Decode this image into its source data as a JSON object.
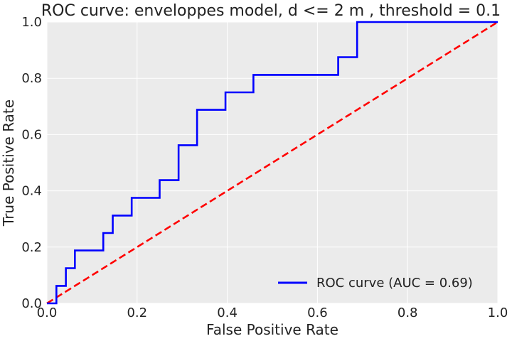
{
  "chart_data": {
    "type": "line",
    "title": "ROC curve: enveloppes model, d <= 2 m , threshold = 0.1",
    "xlabel": "False Positive Rate",
    "ylabel": "True Positive Rate",
    "xlim": [
      0.0,
      1.0
    ],
    "ylim": [
      0.0,
      1.0
    ],
    "xticks": [
      "0.0",
      "0.2",
      "0.4",
      "0.6",
      "0.8",
      "1.0"
    ],
    "yticks": [
      "0.0",
      "0.2",
      "0.4",
      "0.6",
      "0.8",
      "1.0"
    ],
    "grid": true,
    "legend_position": "lower-right",
    "series": [
      {
        "name": "ROC curve (AUC = 0.69)",
        "style": "solid",
        "color": "#0000ff",
        "points": [
          [
            0.0,
            0.0
          ],
          [
            0.021,
            0.0
          ],
          [
            0.021,
            0.062
          ],
          [
            0.042,
            0.062
          ],
          [
            0.042,
            0.125
          ],
          [
            0.062,
            0.125
          ],
          [
            0.062,
            0.188
          ],
          [
            0.125,
            0.188
          ],
          [
            0.125,
            0.25
          ],
          [
            0.146,
            0.25
          ],
          [
            0.146,
            0.312
          ],
          [
            0.188,
            0.312
          ],
          [
            0.188,
            0.375
          ],
          [
            0.25,
            0.375
          ],
          [
            0.25,
            0.438
          ],
          [
            0.292,
            0.438
          ],
          [
            0.292,
            0.562
          ],
          [
            0.333,
            0.562
          ],
          [
            0.333,
            0.688
          ],
          [
            0.396,
            0.688
          ],
          [
            0.396,
            0.75
          ],
          [
            0.458,
            0.75
          ],
          [
            0.458,
            0.812
          ],
          [
            0.646,
            0.812
          ],
          [
            0.646,
            0.875
          ],
          [
            0.688,
            0.875
          ],
          [
            0.688,
            1.0
          ],
          [
            1.0,
            1.0
          ]
        ]
      },
      {
        "style": "dashed",
        "color": "#ff0000",
        "points": [
          [
            0.0,
            0.0
          ],
          [
            1.0,
            1.0
          ]
        ]
      }
    ]
  },
  "colors": {
    "background": "#ebebeb",
    "grid": "#ffffff",
    "roc": "#0000ff",
    "diagonal": "#ff0000"
  }
}
